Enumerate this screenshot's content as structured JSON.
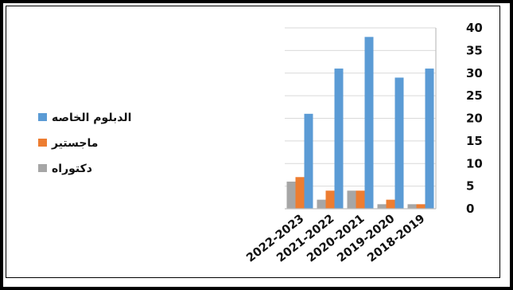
{
  "chart_data": {
    "type": "bar",
    "categories": [
      "2022-2023",
      "2021-2022",
      "2020-2021",
      "2019-2020",
      "2018-2019"
    ],
    "series": [
      {
        "name": "دكتوراه",
        "color": "#a6a6a6",
        "values": [
          6,
          2,
          4,
          1,
          1
        ]
      },
      {
        "name": "ماجستير",
        "color": "#ed7d31",
        "values": [
          7,
          4,
          4,
          2,
          1
        ]
      },
      {
        "name": "الدبلوم الخاصه",
        "color": "#5b9bd5",
        "values": [
          21,
          31,
          38,
          29,
          31
        ]
      }
    ],
    "ylim": [
      0,
      40
    ],
    "y_ticks": [
      "0",
      "5",
      "10",
      "15",
      "20",
      "25",
      "30",
      "35",
      "40"
    ],
    "y_axis_side": "right",
    "grid": true,
    "legend_position": "left",
    "legend_order": [
      "الدبلوم الخاصه",
      "ماجستير",
      "دكتوراه"
    ]
  }
}
